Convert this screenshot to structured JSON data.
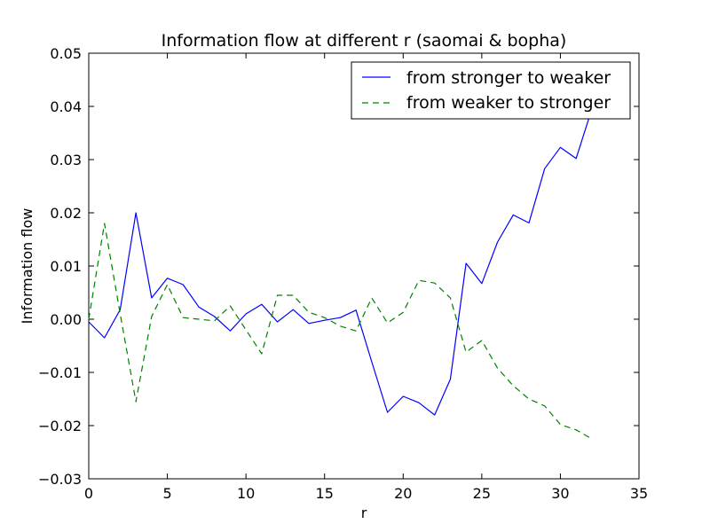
{
  "chart_data": {
    "type": "line",
    "title": "Information flow at different r (saomai & bopha)",
    "xlabel": "r",
    "ylabel": "Information flow",
    "xlim": [
      0,
      35
    ],
    "ylim": [
      -0.03,
      0.05
    ],
    "x_ticks": [
      0,
      5,
      10,
      15,
      20,
      25,
      30,
      35
    ],
    "x_tick_labels": [
      "0",
      "5",
      "10",
      "15",
      "20",
      "25",
      "30",
      "35"
    ],
    "y_ticks": [
      -0.03,
      -0.02,
      -0.01,
      0.0,
      0.01,
      0.02,
      0.03,
      0.04,
      0.05
    ],
    "y_tick_labels": [
      "−0.03",
      "−0.02",
      "−0.01",
      "0.00",
      "0.01",
      "0.02",
      "0.03",
      "0.04",
      "0.05"
    ],
    "grid": false,
    "legend_position": "top-right",
    "x": [
      0,
      1,
      2,
      3,
      4,
      5,
      6,
      7,
      8,
      9,
      10,
      11,
      12,
      13,
      14,
      15,
      16,
      17,
      18,
      19,
      20,
      21,
      22,
      23,
      24,
      25,
      26,
      27,
      28,
      29,
      30,
      31,
      32
    ],
    "series": [
      {
        "name": "from stronger to weaker",
        "color": "#0000ff",
        "style": "solid",
        "values": [
          -0.0005,
          -0.0035,
          0.0018,
          0.02,
          0.004,
          0.0077,
          0.0065,
          0.0023,
          0.0005,
          -0.0022,
          0.001,
          0.0028,
          -0.0005,
          0.0018,
          -0.0008,
          -0.0002,
          0.0003,
          0.0017,
          -0.008,
          -0.0175,
          -0.0145,
          -0.0157,
          -0.018,
          -0.0113,
          0.0105,
          0.0067,
          0.0145,
          0.0196,
          0.0181,
          0.0283,
          0.0323,
          0.0302,
          0.0395
        ]
      },
      {
        "name": "from weaker to stronger",
        "color": "#008000",
        "style": "dashed",
        "values": [
          0.0,
          0.018,
          0.001,
          -0.0155,
          0.0005,
          0.0065,
          0.0003,
          0.0,
          -0.0003,
          0.0025,
          -0.002,
          -0.0065,
          0.0045,
          0.0045,
          0.0013,
          0.0003,
          -0.0013,
          -0.0022,
          0.004,
          -0.0007,
          0.0013,
          0.0073,
          0.0068,
          0.004,
          -0.0062,
          -0.004,
          -0.0092,
          -0.0125,
          -0.015,
          -0.0163,
          -0.0198,
          -0.0208,
          -0.0225
        ]
      }
    ]
  }
}
